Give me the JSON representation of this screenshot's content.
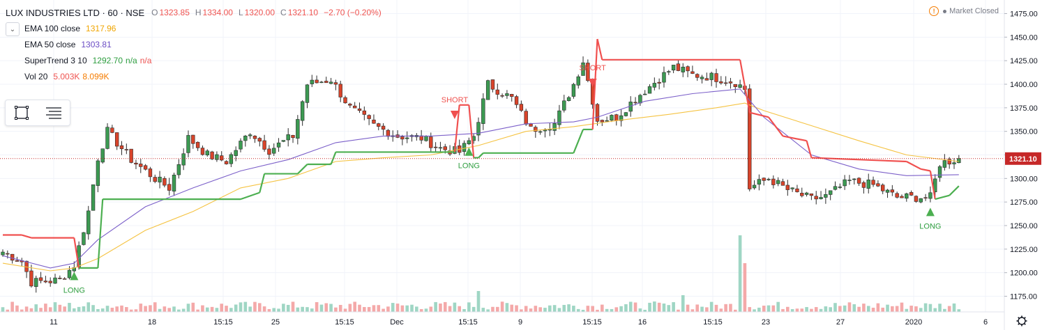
{
  "header": {
    "title": "LUX INDUSTRIES LTD · 60 · NSE",
    "open_key": "O",
    "open": "1323.85",
    "high_key": "H",
    "high": "1334.00",
    "low_key": "L",
    "low": "1320.00",
    "close_key": "C",
    "close": "1321.10",
    "change": "−2.70 (−0.20%)"
  },
  "indicators": [
    {
      "name": "EMA 100 close",
      "values": [
        "1317.96"
      ],
      "color": "#f0b429"
    },
    {
      "name": "EMA 50 close",
      "values": [
        "1303.81"
      ],
      "color": "#6a4cc4"
    },
    {
      "name": "SuperTrend 3 10",
      "values": [
        "1292.70",
        "n/a",
        "n/a"
      ],
      "colors": [
        "#2e9e3f",
        "#2e9e3f",
        "#ef5350"
      ]
    },
    {
      "name": "Vol 20",
      "values": [
        "5.003K",
        "8.099K"
      ],
      "colors": [
        "#ef5350",
        "#f57c00"
      ]
    }
  ],
  "market_status": "Market Closed",
  "icons": {
    "collapse": "chevron-down-icon",
    "rect": "rectangle-tool-icon",
    "menu": "lines-menu-icon",
    "warning": "warning-icon",
    "settings": "gear-icon"
  },
  "colors": {
    "up": "#3c9a52",
    "down": "#d9442b",
    "ema100": "#f5c342",
    "ema50": "#7b5fc9",
    "st_up": "#4caf50",
    "st_down": "#f0504f",
    "vol_up": "#9fd6c4",
    "vol_down": "#f4a9a9",
    "price_line": "#c62828"
  },
  "chart_data": {
    "type": "candlestick",
    "y_axis_ticks": [
      1175,
      1200,
      1225,
      1250,
      1275,
      1300,
      1325,
      1350,
      1375,
      1400,
      1425,
      1450,
      1475
    ],
    "y_axis_labels": [
      "1175.00",
      "1200.00",
      "1225.00",
      "1250.00",
      "1275.00",
      "1300.00",
      "1325.00",
      "1350.00",
      "1375.00",
      "1400.00",
      "1425.00",
      "1450.00",
      "1475.00"
    ],
    "ylim": [
      1160,
      1485
    ],
    "x_axis_labels": [
      "11",
      "18",
      "15:15",
      "25",
      "15:15",
      "Dec",
      "15:15",
      "9",
      "15:15",
      "16",
      "15:15",
      "23",
      "27",
      "2020",
      "6"
    ],
    "last_price": "1321.10",
    "signals": [
      {
        "label": "LONG",
        "type": "buy",
        "bar": 15,
        "price": 1198
      },
      {
        "label": "SHORT",
        "type": "sell",
        "bar": 95,
        "price": 1366
      },
      {
        "label": "LONG",
        "type": "buy",
        "bar": 98,
        "price": 1330
      },
      {
        "label": "SHORT",
        "type": "sell",
        "bar": 124,
        "price": 1400
      },
      {
        "label": "LONG",
        "type": "buy",
        "bar": 195,
        "price": 1266
      }
    ],
    "anchors": [
      [
        0,
        1222
      ],
      [
        4,
        1212
      ],
      [
        6,
        1190
      ],
      [
        12,
        1192
      ],
      [
        15,
        1208
      ],
      [
        18,
        1265
      ],
      [
        20,
        1322
      ],
      [
        22,
        1350
      ],
      [
        27,
        1320
      ],
      [
        32,
        1300
      ],
      [
        35,
        1290
      ],
      [
        39,
        1343
      ],
      [
        43,
        1325
      ],
      [
        47,
        1318
      ],
      [
        52,
        1350
      ],
      [
        56,
        1330
      ],
      [
        61,
        1345
      ],
      [
        64,
        1400
      ],
      [
        69,
        1405
      ],
      [
        73,
        1375
      ],
      [
        78,
        1356
      ],
      [
        83,
        1345
      ],
      [
        88,
        1343
      ],
      [
        92,
        1332
      ],
      [
        96,
        1328
      ],
      [
        99,
        1345
      ],
      [
        102,
        1400
      ],
      [
        107,
        1385
      ],
      [
        111,
        1352
      ],
      [
        116,
        1358
      ],
      [
        120,
        1400
      ],
      [
        122,
        1425
      ],
      [
        125,
        1362
      ],
      [
        129,
        1365
      ],
      [
        133,
        1385
      ],
      [
        137,
        1402
      ],
      [
        141,
        1418
      ],
      [
        145,
        1410
      ],
      [
        149,
        1408
      ],
      [
        154,
        1402
      ],
      [
        156,
        1395
      ],
      [
        157,
        1290
      ],
      [
        161,
        1300
      ],
      [
        165,
        1288
      ],
      [
        170,
        1278
      ],
      [
        173,
        1281
      ],
      [
        178,
        1297
      ],
      [
        183,
        1293
      ],
      [
        188,
        1280
      ],
      [
        192,
        1280
      ],
      [
        195,
        1280
      ],
      [
        197,
        1316
      ],
      [
        201,
        1321
      ]
    ],
    "supertrend": [
      [
        0,
        1240
      ],
      [
        4,
        1240
      ],
      [
        6,
        1237
      ],
      [
        15,
        1237
      ],
      [
        16,
        1205
      ],
      [
        20,
        1205
      ],
      [
        21,
        1278
      ],
      [
        50,
        1278
      ],
      [
        54,
        1285
      ],
      [
        55,
        1305
      ],
      [
        62,
        1305
      ],
      [
        64,
        1315
      ],
      [
        69,
        1315
      ],
      [
        70,
        1328
      ],
      [
        95,
        1328
      ],
      [
        96,
        1378
      ],
      [
        98,
        1378
      ],
      [
        99,
        1322
      ],
      [
        100,
        1322
      ],
      [
        101,
        1327
      ],
      [
        120,
        1327
      ],
      [
        122,
        1352
      ],
      [
        124,
        1352
      ],
      [
        125,
        1448
      ],
      [
        126,
        1426
      ],
      [
        155,
        1426
      ],
      [
        157,
        1370
      ],
      [
        161,
        1365
      ],
      [
        164,
        1345
      ],
      [
        169,
        1340
      ],
      [
        170,
        1322
      ],
      [
        190,
        1318
      ],
      [
        193,
        1310
      ],
      [
        195,
        1308
      ],
      [
        196,
        1278
      ],
      [
        199,
        1282
      ],
      [
        201,
        1292
      ]
    ],
    "ema50": [
      [
        0,
        1218
      ],
      [
        10,
        1205
      ],
      [
        15,
        1210
      ],
      [
        20,
        1235
      ],
      [
        30,
        1270
      ],
      [
        40,
        1290
      ],
      [
        50,
        1308
      ],
      [
        60,
        1320
      ],
      [
        70,
        1338
      ],
      [
        80,
        1345
      ],
      [
        90,
        1345
      ],
      [
        100,
        1348
      ],
      [
        110,
        1358
      ],
      [
        120,
        1360
      ],
      [
        125,
        1365
      ],
      [
        135,
        1382
      ],
      [
        145,
        1390
      ],
      [
        155,
        1395
      ],
      [
        160,
        1365
      ],
      [
        165,
        1345
      ],
      [
        170,
        1325
      ],
      [
        180,
        1310
      ],
      [
        190,
        1303
      ],
      [
        201,
        1304
      ]
    ],
    "ema100": [
      [
        0,
        1210
      ],
      [
        10,
        1202
      ],
      [
        15,
        1205
      ],
      [
        20,
        1215
      ],
      [
        30,
        1245
      ],
      [
        40,
        1265
      ],
      [
        50,
        1290
      ],
      [
        60,
        1300
      ],
      [
        70,
        1318
      ],
      [
        80,
        1322
      ],
      [
        90,
        1325
      ],
      [
        100,
        1335
      ],
      [
        110,
        1350
      ],
      [
        120,
        1355
      ],
      [
        130,
        1362
      ],
      [
        140,
        1368
      ],
      [
        150,
        1375
      ],
      [
        156,
        1380
      ],
      [
        160,
        1372
      ],
      [
        170,
        1356
      ],
      [
        180,
        1340
      ],
      [
        190,
        1325
      ],
      [
        201,
        1318
      ]
    ],
    "volume_spikes": [
      [
        155,
        0.55
      ],
      [
        156,
        0.35
      ],
      [
        143,
        0.12
      ],
      [
        100,
        0.15
      ]
    ]
  }
}
